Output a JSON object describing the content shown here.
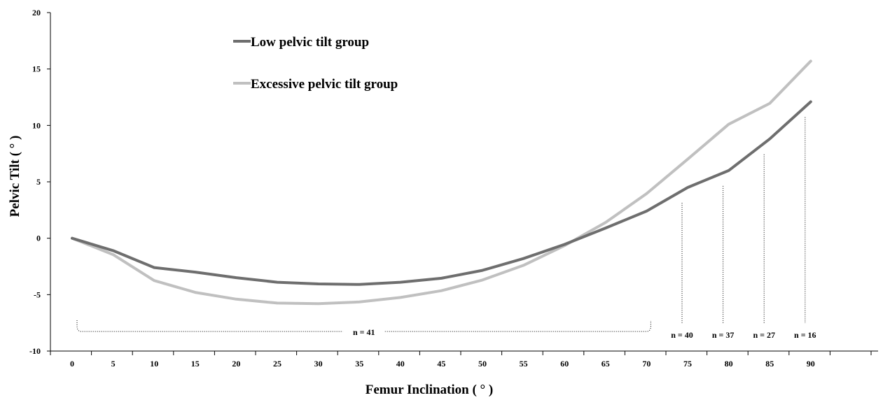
{
  "chart_data": {
    "type": "line",
    "title": "",
    "xlabel": "Femur Inclination ( ° )",
    "ylabel": "Pelvic Tilt ( ° )",
    "xlim": [
      0,
      100
    ],
    "ylim": [
      -10,
      20
    ],
    "x_ticks": [
      0,
      5,
      10,
      15,
      20,
      25,
      30,
      35,
      40,
      45,
      50,
      55,
      60,
      65,
      70,
      75,
      80,
      85,
      90
    ],
    "y_ticks": [
      -10,
      -5,
      0,
      5,
      10,
      15,
      20
    ],
    "grid": false,
    "legend_position": "top-left",
    "series": [
      {
        "name": "Low pelvic tilt group",
        "color": "#6e6e6e",
        "x": [
          0,
          5,
          10,
          15,
          20,
          25,
          30,
          35,
          40,
          45,
          50,
          55,
          60,
          65,
          70,
          75,
          80,
          85,
          90
        ],
        "values": [
          0,
          -1.1,
          -2.6,
          -3.0,
          -3.5,
          -3.9,
          -4.05,
          -4.1,
          -3.9,
          -3.55,
          -2.85,
          -1.8,
          -0.55,
          0.9,
          2.4,
          4.5,
          6.0,
          8.8,
          12.1
        ]
      },
      {
        "name": "Excessive pelvic tilt group",
        "color": "#c0c0c0",
        "x": [
          0,
          5,
          10,
          15,
          20,
          25,
          30,
          35,
          40,
          45,
          50,
          55,
          60,
          65,
          70,
          75,
          80,
          85,
          90
        ],
        "values": [
          0,
          -1.45,
          -3.75,
          -4.8,
          -5.4,
          -5.75,
          -5.8,
          -5.65,
          -5.25,
          -4.65,
          -3.7,
          -2.4,
          -0.65,
          1.4,
          3.95,
          7.0,
          10.1,
          11.95,
          15.7
        ]
      }
    ],
    "annotations": {
      "bracket": {
        "label": "n = 41",
        "x_start": 0,
        "x_end": 70
      },
      "markers": [
        {
          "label": "n = 40",
          "x": 75
        },
        {
          "label": "n = 37",
          "x": 80
        },
        {
          "label": "n = 27",
          "x": 85
        },
        {
          "label": "n = 16",
          "x": 90
        }
      ]
    }
  }
}
